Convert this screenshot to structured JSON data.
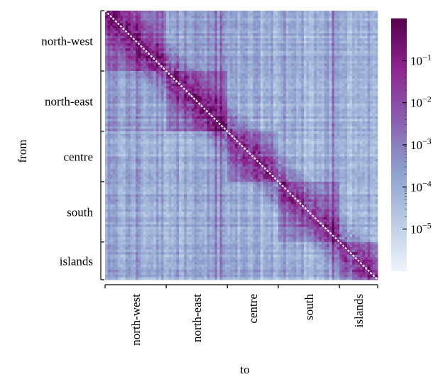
{
  "chart_data": {
    "type": "heatmap",
    "title": "",
    "xlabel": "to",
    "ylabel": "from",
    "regions": [
      "north-west",
      "north-east",
      "centre",
      "south",
      "islands"
    ],
    "region_sizes": [
      24,
      24,
      20,
      24,
      15
    ],
    "scale": "log",
    "colorbar": {
      "range": [
        1e-06,
        1
      ],
      "ticks": [
        {
          "label": "10",
          "exp": "−1",
          "value": 0.1
        },
        {
          "label": "10",
          "exp": "−2",
          "value": 0.01
        },
        {
          "label": "10",
          "exp": "−3",
          "value": 0.001
        },
        {
          "label": "10",
          "exp": "−4",
          "value": 0.0001
        },
        {
          "label": "10",
          "exp": "−5",
          "value": 1e-05
        }
      ],
      "colors": [
        "#eef4fb",
        "#b9cbe4",
        "#8c9fcd",
        "#8a5fb0",
        "#8e2590",
        "#56004f"
      ]
    },
    "diagonal": "white",
    "values_description_note": ""
  }
}
